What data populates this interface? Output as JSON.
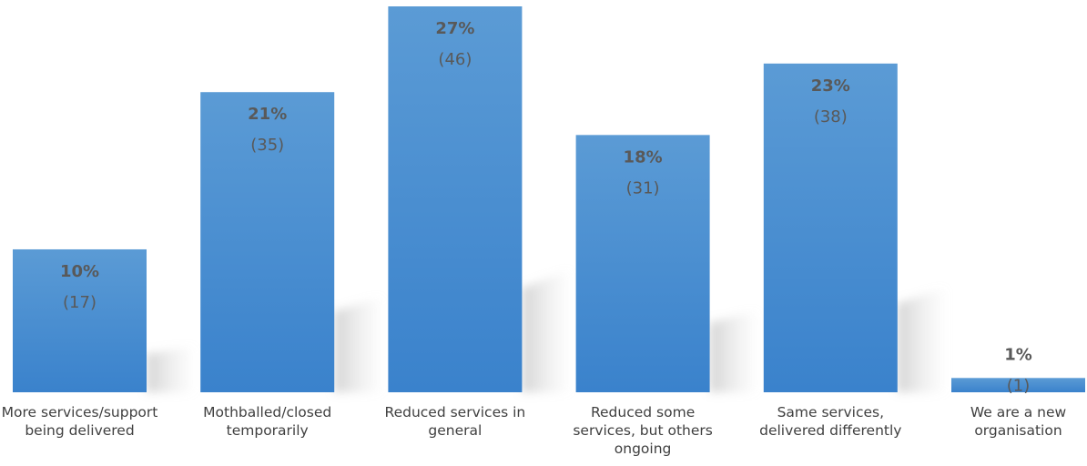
{
  "chart_data": {
    "type": "bar",
    "categories": [
      "More services/support being delivered",
      "Mothballed/closed temporarily",
      "Reduced services in general",
      "Reduced some services, but others ongoing",
      "Same services, delivered differently",
      "We are a new organisation"
    ],
    "values": [
      10,
      21,
      27,
      18,
      23,
      1
    ],
    "value_labels": [
      "10%",
      "21%",
      "27%",
      "18%",
      "23%",
      "1%"
    ],
    "count_labels": [
      "(17)",
      "(35)",
      "(46)",
      "(31)",
      "(38)",
      "(1)"
    ],
    "title": "",
    "xlabel": "",
    "ylabel": "",
    "ylim": [
      0,
      27
    ],
    "grid": false,
    "legend": "none",
    "colors": {
      "bar_top": "#5b9bd5",
      "bar_bottom": "#3a82cc",
      "label_text": "#595959",
      "category_text": "#404040"
    }
  }
}
